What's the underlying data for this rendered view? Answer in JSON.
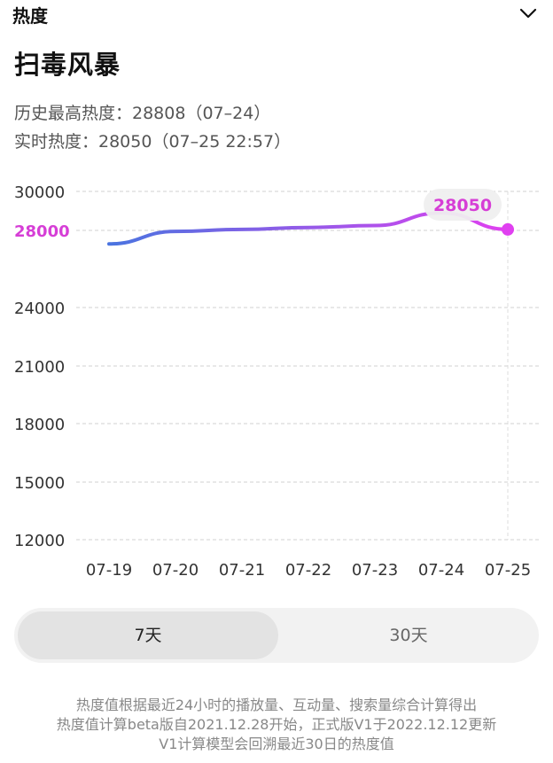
{
  "header": {
    "title": "热度",
    "toggle_icon": "chevron-down-icon"
  },
  "show": {
    "title": "扫毒风暴"
  },
  "stats": {
    "peak": "历史最高热度：28808（07–24）",
    "current": "实时热度：28050（07–25 22:57）"
  },
  "chart_data": {
    "type": "line",
    "x": [
      "07-19",
      "07-20",
      "07-21",
      "07-22",
      "07-23",
      "07-24",
      "07-25"
    ],
    "series": [
      {
        "values": [
          27300,
          27950,
          28050,
          28150,
          28250,
          28900,
          28050
        ]
      }
    ],
    "yticks": [
      12000,
      15000,
      18000,
      21000,
      24000,
      28000,
      30000
    ],
    "highlighted_tick": 28000,
    "ylim": [
      12000,
      30000
    ],
    "callout": "28050",
    "grid": true,
    "colors": {
      "line_start": "#4a74e0",
      "line_end": "#e040f0",
      "highlight": "#d63ed6"
    }
  },
  "range_tabs": {
    "selected": "7天",
    "options": [
      "7天",
      "30天"
    ]
  },
  "footnote": [
    "热度值根据最近24小时的播放量、互动量、搜索量综合计算得出",
    "热度值计算beta版自2021.12.28开始，正式版V1于2022.12.12更新",
    "V1计算模型会回溯最近30日的热度值"
  ]
}
